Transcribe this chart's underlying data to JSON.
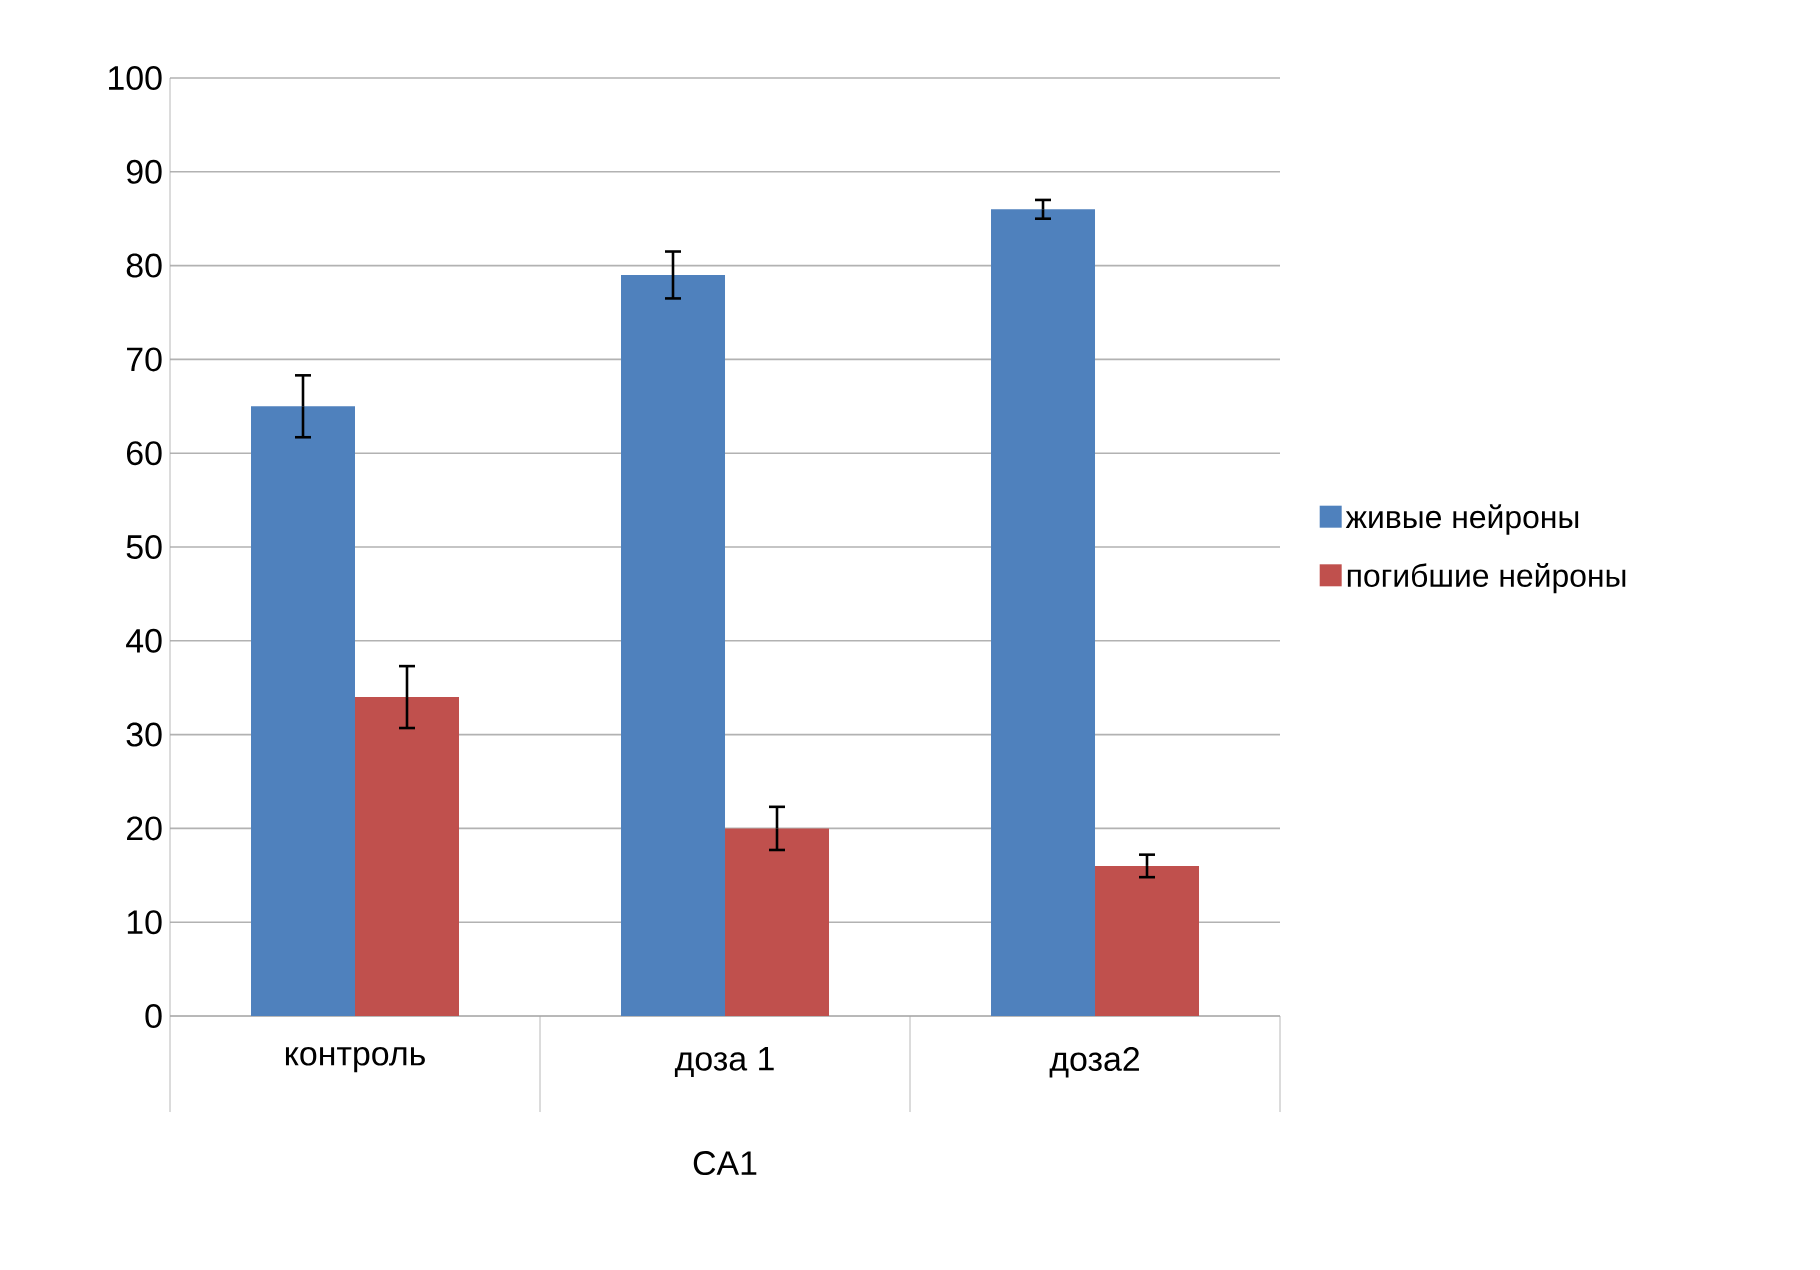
{
  "chart_data": {
    "type": "bar",
    "xlabel": "CA1",
    "categories": [
      "контроль",
      "доза 1",
      "доза2"
    ],
    "series": [
      {
        "name": "живые нейроны",
        "color": "#4f81bd",
        "values": [
          65,
          79,
          86
        ],
        "errors": [
          3.3,
          2.5,
          1
        ]
      },
      {
        "name": "погибшие нейроны",
        "color": "#c0504d",
        "values": [
          34,
          20,
          16
        ],
        "errors": [
          3.3,
          2.3,
          1.2
        ]
      }
    ],
    "ylim": [
      0,
      100
    ],
    "yticks": [
      0,
      10,
      20,
      30,
      40,
      50,
      60,
      70,
      80,
      90,
      100
    ],
    "grid": "y",
    "legend": "right"
  }
}
